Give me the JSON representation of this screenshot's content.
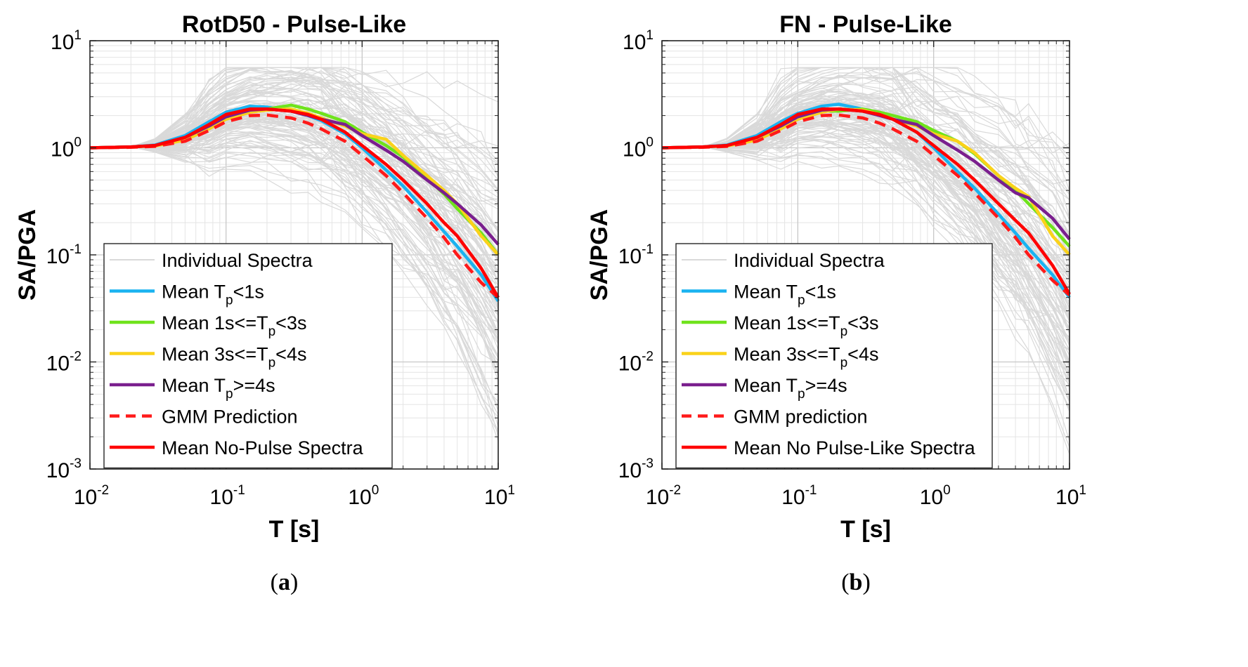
{
  "chart_data": [
    {
      "id": "a",
      "type": "line",
      "title": "RotD50 - Pulse-Like",
      "caption_letter": "a",
      "xlabel": "T [s]",
      "ylabel": "SA/PGA",
      "xscale": "log",
      "yscale": "log",
      "xlim": [
        0.01,
        10
      ],
      "ylim": [
        0.001,
        10
      ],
      "x_ticks": [
        {
          "base": "10",
          "exp": "-2"
        },
        {
          "base": "10",
          "exp": "-1"
        },
        {
          "base": "10",
          "exp": "0"
        },
        {
          "base": "10",
          "exp": "1"
        }
      ],
      "y_ticks": [
        {
          "base": "10",
          "exp": "-3"
        },
        {
          "base": "10",
          "exp": "-2"
        },
        {
          "base": "10",
          "exp": "-1"
        },
        {
          "base": "10",
          "exp": "0"
        },
        {
          "base": "10",
          "exp": "1"
        }
      ],
      "grid": true,
      "minor_grid": true,
      "legend_position": "lower-left",
      "legend": [
        {
          "style": "individual",
          "parts": [
            {
              "t": "Individual Spectra"
            }
          ]
        },
        {
          "style": "tp_lt1",
          "parts": [
            {
              "t": "Mean T"
            },
            {
              "t": "p",
              "sub": true
            },
            {
              "t": "<1s"
            }
          ]
        },
        {
          "style": "tp_1_3",
          "parts": [
            {
              "t": "Mean 1s<=T"
            },
            {
              "t": "p",
              "sub": true
            },
            {
              "t": "<3s"
            }
          ]
        },
        {
          "style": "tp_3_4",
          "parts": [
            {
              "t": "Mean 3s<=T"
            },
            {
              "t": "p",
              "sub": true
            },
            {
              "t": "<4s"
            }
          ]
        },
        {
          "style": "tp_ge4",
          "parts": [
            {
              "t": "Mean T"
            },
            {
              "t": "p",
              "sub": true
            },
            {
              "t": ">=4s"
            }
          ]
        },
        {
          "style": "gmm",
          "parts": [
            {
              "t": "GMM Prediction"
            }
          ]
        },
        {
          "style": "nopulse",
          "parts": [
            {
              "t": "Mean No-Pulse Spectra"
            }
          ]
        }
      ],
      "series": [
        {
          "style": "tp_lt1",
          "x": [
            0.01,
            0.02,
            0.03,
            0.05,
            0.075,
            0.1,
            0.15,
            0.2,
            0.3,
            0.4,
            0.5,
            0.75,
            1.0,
            1.5,
            2.0,
            3.0,
            4.0,
            5.0,
            7.5,
            10.0
          ],
          "y": [
            1.0,
            1.02,
            1.06,
            1.3,
            1.75,
            2.15,
            2.45,
            2.4,
            2.2,
            2.0,
            1.8,
            1.35,
            1.0,
            0.62,
            0.44,
            0.25,
            0.165,
            0.12,
            0.065,
            0.037
          ]
        },
        {
          "style": "tp_1_3",
          "x": [
            0.01,
            0.02,
            0.03,
            0.05,
            0.075,
            0.1,
            0.15,
            0.2,
            0.3,
            0.4,
            0.5,
            0.75,
            1.0,
            1.5,
            2.0,
            3.0,
            4.0,
            5.0,
            7.5,
            10.0
          ],
          "y": [
            1.0,
            1.02,
            1.05,
            1.22,
            1.6,
            1.95,
            2.2,
            2.3,
            2.5,
            2.3,
            2.1,
            1.75,
            1.4,
            1.05,
            0.82,
            0.52,
            0.37,
            0.27,
            0.16,
            0.1
          ]
        },
        {
          "style": "tp_3_4",
          "x": [
            0.01,
            0.02,
            0.03,
            0.05,
            0.075,
            0.1,
            0.15,
            0.2,
            0.3,
            0.4,
            0.5,
            0.75,
            1.0,
            1.5,
            2.0,
            3.0,
            4.0,
            5.0,
            7.5,
            10.0
          ],
          "y": [
            1.0,
            1.02,
            1.04,
            1.18,
            1.5,
            1.85,
            2.15,
            2.25,
            2.3,
            2.1,
            1.9,
            1.6,
            1.35,
            1.2,
            0.85,
            0.55,
            0.4,
            0.3,
            0.15,
            0.1
          ]
        },
        {
          "style": "tp_ge4",
          "x": [
            0.01,
            0.02,
            0.03,
            0.05,
            0.075,
            0.1,
            0.15,
            0.2,
            0.3,
            0.4,
            0.5,
            0.75,
            1.0,
            1.5,
            2.0,
            3.0,
            4.0,
            5.0,
            7.5,
            10.0
          ],
          "y": [
            1.0,
            1.02,
            1.05,
            1.25,
            1.6,
            1.95,
            2.25,
            2.3,
            2.2,
            2.0,
            1.85,
            1.65,
            1.3,
            0.95,
            0.75,
            0.5,
            0.38,
            0.3,
            0.19,
            0.125
          ]
        },
        {
          "style": "gmm",
          "x": [
            0.01,
            0.02,
            0.03,
            0.05,
            0.075,
            0.1,
            0.15,
            0.2,
            0.3,
            0.4,
            0.5,
            0.75,
            1.0,
            1.5,
            2.0,
            3.0,
            4.0,
            5.0,
            7.5,
            10.0
          ],
          "y": [
            1.0,
            1.01,
            1.03,
            1.15,
            1.45,
            1.75,
            2.0,
            2.02,
            1.9,
            1.7,
            1.5,
            1.15,
            0.85,
            0.55,
            0.38,
            0.22,
            0.145,
            0.1,
            0.055,
            0.04
          ]
        },
        {
          "style": "nopulse",
          "x": [
            0.01,
            0.02,
            0.03,
            0.05,
            0.075,
            0.1,
            0.15,
            0.2,
            0.3,
            0.4,
            0.5,
            0.75,
            1.0,
            1.5,
            2.0,
            3.0,
            4.0,
            5.0,
            7.5,
            10.0
          ],
          "y": [
            1.0,
            1.02,
            1.05,
            1.25,
            1.65,
            2.05,
            2.3,
            2.3,
            2.2,
            2.05,
            1.85,
            1.4,
            1.05,
            0.7,
            0.5,
            0.3,
            0.2,
            0.15,
            0.075,
            0.04
          ]
        }
      ]
    },
    {
      "id": "b",
      "type": "line",
      "title": "FN - Pulse-Like",
      "caption_letter": "b",
      "xlabel": "T [s]",
      "ylabel": "SA/PGA",
      "xscale": "log",
      "yscale": "log",
      "xlim": [
        0.01,
        10
      ],
      "ylim": [
        0.001,
        10
      ],
      "x_ticks": [
        {
          "base": "10",
          "exp": "-2"
        },
        {
          "base": "10",
          "exp": "-1"
        },
        {
          "base": "10",
          "exp": "0"
        },
        {
          "base": "10",
          "exp": "1"
        }
      ],
      "y_ticks": [
        {
          "base": "10",
          "exp": "-3"
        },
        {
          "base": "10",
          "exp": "-2"
        },
        {
          "base": "10",
          "exp": "-1"
        },
        {
          "base": "10",
          "exp": "0"
        },
        {
          "base": "10",
          "exp": "1"
        }
      ],
      "grid": true,
      "minor_grid": true,
      "legend_position": "lower-left",
      "legend": [
        {
          "style": "individual",
          "parts": [
            {
              "t": "Individual Spectra"
            }
          ]
        },
        {
          "style": "tp_lt1",
          "parts": [
            {
              "t": "Mean T"
            },
            {
              "t": "p",
              "sub": true
            },
            {
              "t": "<1s"
            }
          ]
        },
        {
          "style": "tp_1_3",
          "parts": [
            {
              "t": "Mean 1s<=T"
            },
            {
              "t": "p",
              "sub": true
            },
            {
              "t": "<3s"
            }
          ]
        },
        {
          "style": "tp_3_4",
          "parts": [
            {
              "t": "Mean 3s<=T"
            },
            {
              "t": "p",
              "sub": true
            },
            {
              "t": "<4s"
            }
          ]
        },
        {
          "style": "tp_ge4",
          "parts": [
            {
              "t": "Mean T"
            },
            {
              "t": "p",
              "sub": true
            },
            {
              "t": ">=4s"
            }
          ]
        },
        {
          "style": "gmm",
          "parts": [
            {
              "t": "GMM prediction"
            }
          ]
        },
        {
          "style": "nopulse",
          "parts": [
            {
              "t": "Mean No Pulse-Like Spectra"
            }
          ]
        }
      ],
      "series": [
        {
          "style": "tp_lt1",
          "x": [
            0.01,
            0.02,
            0.03,
            0.05,
            0.075,
            0.1,
            0.15,
            0.2,
            0.3,
            0.4,
            0.5,
            0.75,
            1.0,
            1.5,
            2.0,
            3.0,
            4.0,
            5.0,
            7.5,
            10.0
          ],
          "y": [
            1.0,
            1.02,
            1.06,
            1.3,
            1.75,
            2.1,
            2.45,
            2.55,
            2.3,
            2.05,
            1.85,
            1.4,
            1.0,
            0.6,
            0.42,
            0.24,
            0.16,
            0.115,
            0.065,
            0.04
          ]
        },
        {
          "style": "tp_1_3",
          "x": [
            0.01,
            0.02,
            0.03,
            0.05,
            0.075,
            0.1,
            0.15,
            0.2,
            0.3,
            0.4,
            0.5,
            0.75,
            1.0,
            1.5,
            2.0,
            3.0,
            4.0,
            5.0,
            7.5,
            10.0
          ],
          "y": [
            1.0,
            1.02,
            1.05,
            1.22,
            1.6,
            1.95,
            2.2,
            2.2,
            2.3,
            2.15,
            2.0,
            1.75,
            1.45,
            1.15,
            0.88,
            0.55,
            0.4,
            0.3,
            0.18,
            0.12
          ]
        },
        {
          "style": "tp_3_4",
          "x": [
            0.01,
            0.02,
            0.03,
            0.05,
            0.075,
            0.1,
            0.15,
            0.2,
            0.3,
            0.4,
            0.5,
            0.75,
            1.0,
            1.5,
            2.0,
            3.0,
            4.0,
            5.0,
            7.5,
            10.0
          ],
          "y": [
            1.0,
            1.02,
            1.04,
            1.18,
            1.5,
            1.85,
            2.15,
            2.3,
            2.25,
            2.05,
            1.85,
            1.6,
            1.35,
            1.15,
            0.9,
            0.55,
            0.42,
            0.35,
            0.15,
            0.1
          ]
        },
        {
          "style": "tp_ge4",
          "x": [
            0.01,
            0.02,
            0.03,
            0.05,
            0.075,
            0.1,
            0.15,
            0.2,
            0.3,
            0.4,
            0.5,
            0.75,
            1.0,
            1.5,
            2.0,
            3.0,
            4.0,
            5.0,
            7.5,
            10.0
          ],
          "y": [
            1.0,
            1.02,
            1.05,
            1.25,
            1.6,
            1.95,
            2.25,
            2.3,
            2.2,
            2.0,
            1.85,
            1.65,
            1.3,
            0.95,
            0.75,
            0.5,
            0.38,
            0.34,
            0.22,
            0.14
          ]
        },
        {
          "style": "gmm",
          "x": [
            0.01,
            0.02,
            0.03,
            0.05,
            0.075,
            0.1,
            0.15,
            0.2,
            0.3,
            0.4,
            0.5,
            0.75,
            1.0,
            1.5,
            2.0,
            3.0,
            4.0,
            5.0,
            7.5,
            10.0
          ],
          "y": [
            1.0,
            1.01,
            1.03,
            1.15,
            1.45,
            1.75,
            2.0,
            2.02,
            1.9,
            1.7,
            1.5,
            1.15,
            0.85,
            0.55,
            0.38,
            0.22,
            0.145,
            0.1,
            0.058,
            0.042
          ]
        },
        {
          "style": "nopulse",
          "x": [
            0.01,
            0.02,
            0.03,
            0.05,
            0.075,
            0.1,
            0.15,
            0.2,
            0.3,
            0.4,
            0.5,
            0.75,
            1.0,
            1.5,
            2.0,
            3.0,
            4.0,
            5.0,
            7.5,
            10.0
          ],
          "y": [
            1.0,
            1.02,
            1.05,
            1.25,
            1.65,
            2.05,
            2.3,
            2.3,
            2.2,
            2.05,
            1.85,
            1.4,
            1.05,
            0.7,
            0.5,
            0.3,
            0.21,
            0.16,
            0.08,
            0.043
          ]
        }
      ]
    }
  ],
  "styles": {
    "individual": {
      "color": "#d9d9d9",
      "dashed": false,
      "width": 2
    },
    "tp_lt1": {
      "color": "#1ab3f0",
      "dashed": false,
      "width": 4.5
    },
    "tp_1_3": {
      "color": "#6fe31c",
      "dashed": false,
      "width": 4.5
    },
    "tp_3_4": {
      "color": "#fad21a",
      "dashed": false,
      "width": 4.5
    },
    "tp_ge4": {
      "color": "#7a1f8e",
      "dashed": false,
      "width": 4.5
    },
    "gmm": {
      "color": "#ff1a1a",
      "dashed": true,
      "width": 4.5
    },
    "nopulse": {
      "color": "#ff0000",
      "dashed": false,
      "width": 4.5
    }
  }
}
